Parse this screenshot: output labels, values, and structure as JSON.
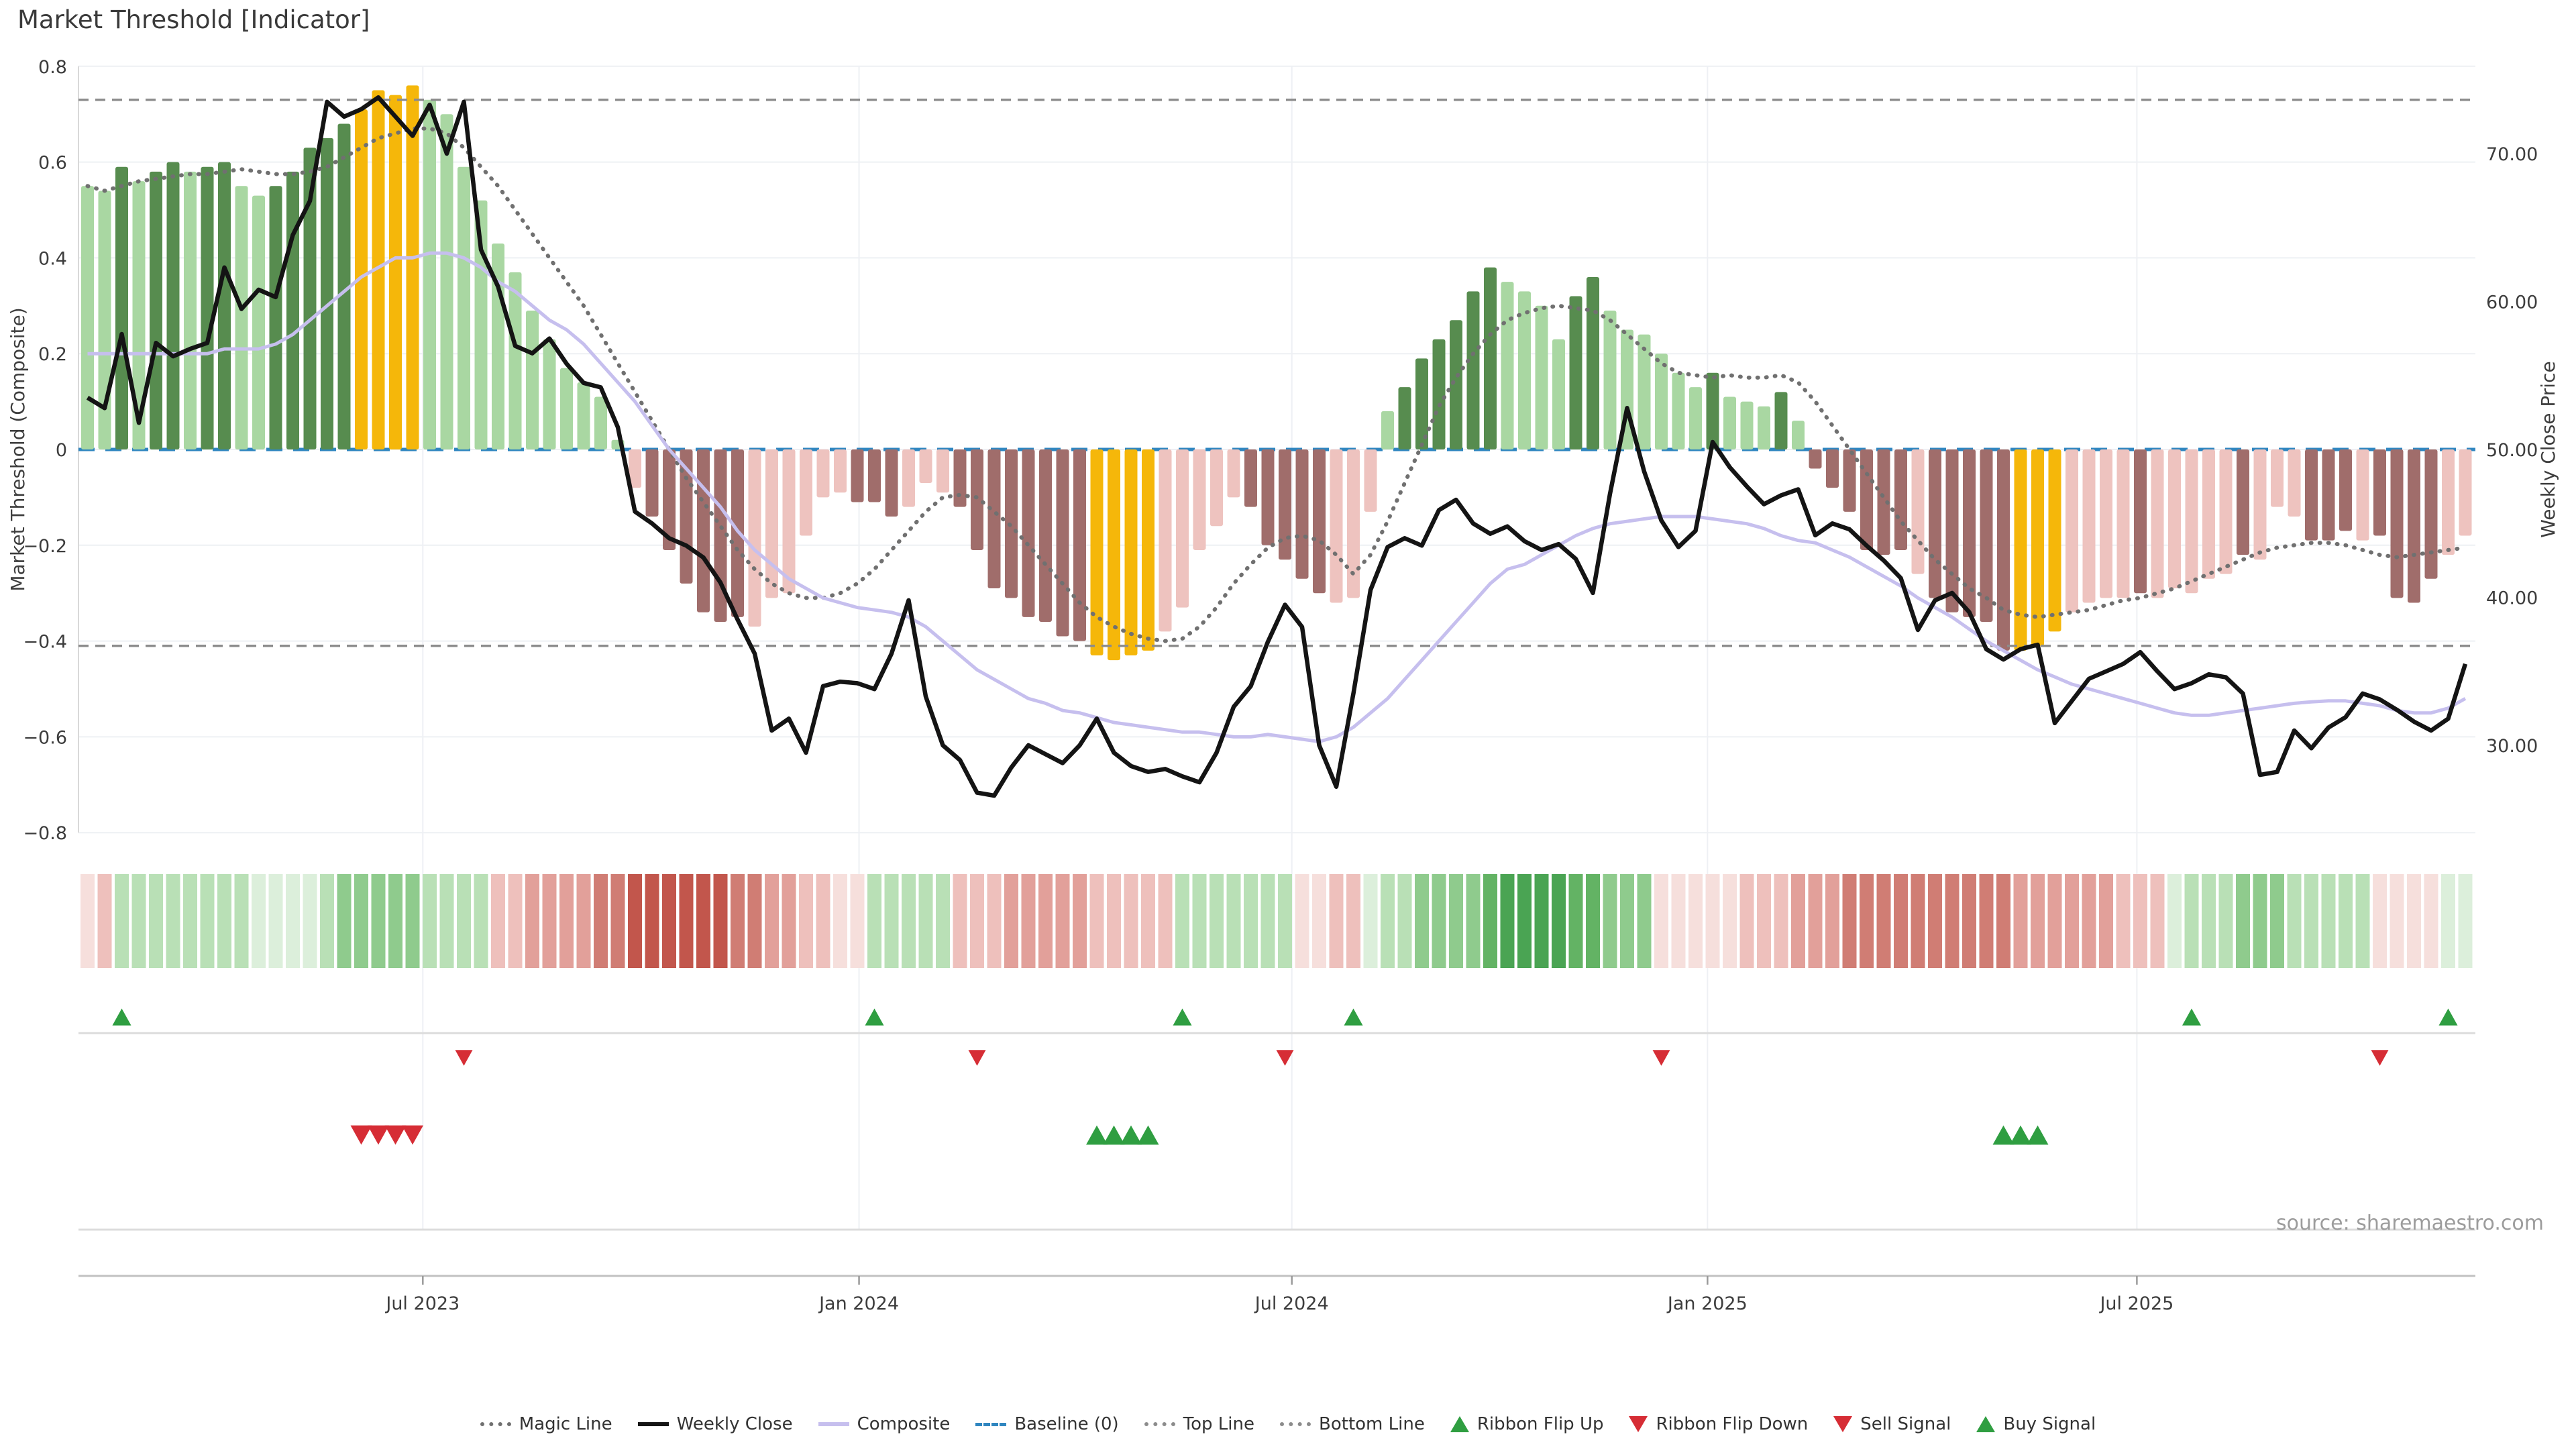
{
  "title": "Market Threshold [Indicator]",
  "source_note": "source: sharemaestro.com",
  "colors": {
    "bar_light_green": "#a9d7a2",
    "bar_dark_green": "#578c4f",
    "bar_yellow": "#f5b70a",
    "bar_pale_pink": "#eec3bf",
    "bar_brown": "#a06d6b",
    "ribbon_green": [
      "#dcefdb",
      "#b9e0b6",
      "#8fcb8d",
      "#63b364",
      "#4aa453"
    ],
    "ribbon_red": [
      "#f6dfdc",
      "#eec0bc",
      "#e2a09a",
      "#d07d74",
      "#c2564c"
    ],
    "line_close": "#141414",
    "line_composite": "#c6bfee",
    "line_magic": "#707070",
    "line_bounds": "#8c8c8c",
    "line_baseline": "#2f86c0",
    "tri_green": "#2f9e41",
    "tri_red": "#d62d35",
    "grid": "#eef0f4",
    "spine": "#d9d9d9",
    "axis_line": "#c2c2c2",
    "tick_text": "#3d3d3d"
  },
  "legend": {
    "items": [
      {
        "label": "Magic Line",
        "swatch": "dotted",
        "color": "#707070"
      },
      {
        "label": "Weekly Close",
        "swatch": "solid",
        "color": "#141414"
      },
      {
        "label": "Composite",
        "swatch": "solid",
        "color": "#c6bfee"
      },
      {
        "label": "Baseline (0)",
        "swatch": "dashed",
        "color": "#2f86c0"
      },
      {
        "label": "Top Line",
        "swatch": "dotted",
        "color": "#8c8c8c"
      },
      {
        "label": "Bottom Line",
        "swatch": "dotted",
        "color": "#8c8c8c"
      },
      {
        "label": "Ribbon Flip Up",
        "swatch": "tri-up",
        "color": "#2f9e41"
      },
      {
        "label": "Ribbon Flip Down",
        "swatch": "tri-down",
        "color": "#d62d35"
      },
      {
        "label": "Sell Signal",
        "swatch": "tri-down",
        "color": "#d62d35"
      },
      {
        "label": "Buy Signal",
        "swatch": "tri-up",
        "color": "#2f9e41"
      }
    ]
  },
  "chart_data": {
    "type": "bar",
    "title": "Market Threshold [Indicator]",
    "n_points": 140,
    "grid": true,
    "legend_position": "bottom",
    "x_axis": {
      "tick_labels": [
        "Jul 2023",
        "Jan 2024",
        "Jul 2024",
        "Jan 2025",
        "Jul 2025"
      ],
      "tick_positions_week": [
        19.6,
        45.1,
        70.4,
        94.7,
        119.8
      ]
    },
    "y_left": {
      "label": "Market Threshold (Composite)",
      "ticks": [
        0.8,
        0.6,
        0.4,
        0.2,
        0,
        -0.2,
        -0.4,
        -0.6,
        -0.8
      ],
      "tick_labels": [
        "0.8",
        "0.6",
        "0.4",
        "0.2",
        "0",
        "−0.2",
        "−0.4",
        "−0.6",
        "−0.8"
      ],
      "range": [
        -0.88,
        0.88
      ]
    },
    "y_right": {
      "label": "Weekly Close Price",
      "ticks": [
        70,
        60,
        50,
        40,
        30
      ],
      "tick_labels": [
        "70.00",
        "60.00",
        "50.00",
        "40.00",
        "30.00"
      ]
    },
    "top_line": 0.73,
    "bottom_line": -0.41,
    "baseline": 0,
    "threshold_bars": {
      "values": [
        0.55,
        0.54,
        0.59,
        0.56,
        0.58,
        0.6,
        0.58,
        0.59,
        0.6,
        0.55,
        0.53,
        0.55,
        0.58,
        0.63,
        0.65,
        0.68,
        0.71,
        0.75,
        0.74,
        0.76,
        0.73,
        0.7,
        0.59,
        0.52,
        0.43,
        0.37,
        0.29,
        0.23,
        0.17,
        0.14,
        0.11,
        0.02,
        -0.08,
        -0.14,
        -0.21,
        -0.28,
        -0.34,
        -0.36,
        -0.35,
        -0.37,
        -0.31,
        -0.3,
        -0.18,
        -0.1,
        -0.09,
        -0.11,
        -0.11,
        -0.14,
        -0.12,
        -0.07,
        -0.09,
        -0.12,
        -0.21,
        -0.29,
        -0.31,
        -0.35,
        -0.36,
        -0.39,
        -0.4,
        -0.43,
        -0.44,
        -0.43,
        -0.42,
        -0.38,
        -0.33,
        -0.21,
        -0.16,
        -0.1,
        -0.12,
        -0.2,
        -0.23,
        -0.27,
        -0.3,
        -0.32,
        -0.31,
        -0.13,
        0.08,
        0.13,
        0.19,
        0.23,
        0.27,
        0.33,
        0.38,
        0.35,
        0.33,
        0.3,
        0.23,
        0.32,
        0.36,
        0.29,
        0.25,
        0.24,
        0.2,
        0.16,
        0.13,
        0.16,
        0.11,
        0.1,
        0.09,
        0.12,
        0.06,
        -0.04,
        -0.08,
        -0.13,
        -0.21,
        -0.22,
        -0.21,
        -0.26,
        -0.31,
        -0.34,
        -0.35,
        -0.36,
        -0.42,
        -0.42,
        -0.41,
        -0.38,
        -0.34,
        -0.32,
        -0.31,
        -0.31,
        -0.3,
        -0.31,
        -0.29,
        -0.3,
        -0.27,
        -0.26,
        -0.22,
        -0.23,
        -0.12,
        -0.14,
        -0.19,
        -0.19,
        -0.17,
        -0.19,
        -0.18,
        -0.31,
        -0.32,
        -0.27,
        -0.22,
        -0.18
      ],
      "color_codes": "LLDLDDLDDLLDDDDDYYYYLLLLLLLLLLLLPBBBBBBPPPPPPBBBPPPBBBBBBBBYYYYPPPPPBBBBBPPPLDDDDDDLLLLDDLLLLLLDLLLDLBBBBBBPBBBBBYYYPPPPBPPPPPBPPPBBBPBBBBPPP"
    },
    "weekly_close": [
      53.5,
      52.8,
      57.8,
      51.8,
      57.2,
      56.3,
      56.8,
      57.2,
      62.3,
      59.5,
      60.8,
      60.3,
      64.5,
      66.8,
      73.5,
      72.5,
      73.0,
      73.8,
      72.5,
      71.2,
      73.3,
      70.0,
      73.5,
      63.5,
      61.0,
      57.0,
      56.5,
      57.5,
      55.8,
      54.5,
      54.2,
      51.5,
      45.8,
      45.0,
      44.0,
      43.5,
      42.7,
      41.0,
      38.5,
      36.2,
      31.0,
      31.8,
      29.5,
      34.0,
      34.3,
      34.2,
      33.8,
      36.2,
      39.8,
      33.3,
      30.0,
      29.0,
      26.8,
      26.6,
      28.5,
      30.0,
      29.4,
      28.8,
      30.0,
      31.8,
      29.5,
      28.6,
      28.2,
      28.4,
      27.9,
      27.5,
      29.5,
      32.6,
      34.0,
      37.0,
      39.5,
      38.0,
      30.0,
      27.2,
      33.5,
      40.5,
      43.4,
      44.0,
      43.5,
      45.9,
      46.6,
      45.0,
      44.3,
      44.8,
      43.8,
      43.2,
      43.6,
      42.6,
      40.3,
      47.0,
      52.8,
      48.5,
      45.2,
      43.4,
      44.5,
      50.5,
      48.8,
      47.5,
      46.3,
      46.9,
      47.3,
      44.2,
      45.0,
      44.6,
      43.5,
      42.5,
      41.3,
      37.8,
      39.8,
      40.3,
      39.0,
      36.5,
      35.8,
      36.5,
      36.8,
      31.5,
      33.0,
      34.5,
      35.0,
      35.5,
      36.3,
      35.0,
      33.8,
      34.2,
      34.8,
      34.6,
      33.5,
      28.0,
      28.2,
      31.0,
      29.8,
      31.2,
      31.9,
      33.5,
      33.1,
      32.4,
      31.6,
      31.0,
      31.8,
      35.5
    ],
    "composite": [
      0.2,
      0.2,
      0.2,
      0.2,
      0.2,
      0.2,
      0.2,
      0.2,
      0.21,
      0.21,
      0.21,
      0.22,
      0.24,
      0.27,
      0.3,
      0.33,
      0.36,
      0.38,
      0.4,
      0.4,
      0.41,
      0.41,
      0.4,
      0.38,
      0.35,
      0.33,
      0.3,
      0.27,
      0.25,
      0.22,
      0.18,
      0.14,
      0.1,
      0.05,
      0.0,
      -0.04,
      -0.08,
      -0.12,
      -0.17,
      -0.21,
      -0.24,
      -0.27,
      -0.29,
      -0.31,
      -0.32,
      -0.33,
      -0.335,
      -0.34,
      -0.35,
      -0.37,
      -0.4,
      -0.43,
      -0.46,
      -0.48,
      -0.5,
      -0.52,
      -0.53,
      -0.545,
      -0.55,
      -0.56,
      -0.57,
      -0.575,
      -0.58,
      -0.585,
      -0.59,
      -0.59,
      -0.595,
      -0.6,
      -0.6,
      -0.595,
      -0.6,
      -0.605,
      -0.61,
      -0.6,
      -0.58,
      -0.55,
      -0.52,
      -0.48,
      -0.44,
      -0.4,
      -0.36,
      -0.32,
      -0.28,
      -0.25,
      -0.24,
      -0.22,
      -0.2,
      -0.18,
      -0.165,
      -0.155,
      -0.15,
      -0.145,
      -0.14,
      -0.14,
      -0.14,
      -0.145,
      -0.15,
      -0.155,
      -0.165,
      -0.18,
      -0.19,
      -0.195,
      -0.21,
      -0.225,
      -0.245,
      -0.265,
      -0.285,
      -0.31,
      -0.33,
      -0.35,
      -0.375,
      -0.4,
      -0.42,
      -0.44,
      -0.46,
      -0.475,
      -0.49,
      -0.5,
      -0.51,
      -0.52,
      -0.53,
      -0.54,
      -0.55,
      -0.555,
      -0.555,
      -0.55,
      -0.545,
      -0.54,
      -0.535,
      -0.53,
      -0.527,
      -0.525,
      -0.525,
      -0.53,
      -0.535,
      -0.545,
      -0.55,
      -0.55,
      -0.54,
      -0.52
    ],
    "magic_line": [
      0.55,
      0.54,
      0.55,
      0.56,
      0.565,
      0.57,
      0.575,
      0.575,
      0.58,
      0.585,
      0.58,
      0.575,
      0.575,
      0.58,
      0.59,
      0.61,
      0.63,
      0.65,
      0.66,
      0.67,
      0.67,
      0.66,
      0.63,
      0.59,
      0.55,
      0.5,
      0.45,
      0.4,
      0.35,
      0.3,
      0.24,
      0.18,
      0.12,
      0.06,
      0.0,
      -0.06,
      -0.11,
      -0.16,
      -0.21,
      -0.25,
      -0.28,
      -0.3,
      -0.31,
      -0.31,
      -0.3,
      -0.28,
      -0.25,
      -0.21,
      -0.17,
      -0.13,
      -0.1,
      -0.095,
      -0.1,
      -0.13,
      -0.16,
      -0.2,
      -0.24,
      -0.28,
      -0.32,
      -0.35,
      -0.37,
      -0.385,
      -0.395,
      -0.4,
      -0.395,
      -0.37,
      -0.33,
      -0.28,
      -0.24,
      -0.205,
      -0.185,
      -0.18,
      -0.19,
      -0.22,
      -0.26,
      -0.22,
      -0.15,
      -0.07,
      0.01,
      0.09,
      0.15,
      0.2,
      0.24,
      0.27,
      0.285,
      0.295,
      0.3,
      0.295,
      0.29,
      0.27,
      0.24,
      0.21,
      0.18,
      0.16,
      0.155,
      0.15,
      0.155,
      0.15,
      0.15,
      0.155,
      0.14,
      0.1,
      0.05,
      0.0,
      -0.05,
      -0.1,
      -0.15,
      -0.19,
      -0.23,
      -0.26,
      -0.29,
      -0.31,
      -0.335,
      -0.345,
      -0.35,
      -0.345,
      -0.34,
      -0.335,
      -0.325,
      -0.315,
      -0.31,
      -0.3,
      -0.29,
      -0.275,
      -0.26,
      -0.245,
      -0.23,
      -0.215,
      -0.205,
      -0.2,
      -0.195,
      -0.195,
      -0.2,
      -0.21,
      -0.22,
      -0.225,
      -0.22,
      -0.215,
      -0.21,
      -0.205
    ],
    "ribbon": [
      -1,
      -2,
      2,
      2,
      2,
      2,
      2,
      2,
      2,
      2,
      1,
      1,
      1,
      1,
      2,
      3,
      3,
      3,
      3,
      3,
      2,
      2,
      2,
      2,
      -2,
      -2,
      -3,
      -3,
      -3,
      -3,
      -4,
      -4,
      -5,
      -5,
      -5,
      -5,
      -5,
      -5,
      -4,
      -4,
      -3,
      -3,
      -2,
      -2,
      -1,
      -1,
      2,
      2,
      2,
      2,
      2,
      -2,
      -2,
      -2,
      -3,
      -3,
      -3,
      -3,
      -3,
      -2,
      -2,
      -2,
      -2,
      -2,
      2,
      2,
      2,
      2,
      2,
      2,
      2,
      -1,
      -1,
      -2,
      -2,
      1,
      2,
      2,
      3,
      3,
      3,
      3,
      4,
      5,
      5,
      5,
      5,
      4,
      4,
      3,
      3,
      3,
      -1,
      -1,
      -1,
      -1,
      -1,
      -2,
      -2,
      -2,
      -3,
      -3,
      -3,
      -4,
      -4,
      -4,
      -4,
      -4,
      -4,
      -4,
      -4,
      -4,
      -4,
      -3,
      -3,
      -3,
      -3,
      -3,
      -3,
      -2,
      -2,
      -2,
      1,
      2,
      2,
      2,
      3,
      3,
      3,
      2,
      2,
      2,
      2,
      2,
      -1,
      -1,
      -1,
      -1,
      1,
      1
    ],
    "signals": {
      "ribbon_flip_up_weeks": [
        2,
        46,
        64,
        74,
        123,
        138
      ],
      "ribbon_flip_down_weeks": [
        22,
        52,
        70,
        92,
        134
      ],
      "sell_signal_weeks": [
        16,
        17,
        18,
        19
      ],
      "buy_signal_weeks": [
        59,
        60,
        61,
        62,
        112,
        113,
        114
      ]
    }
  }
}
